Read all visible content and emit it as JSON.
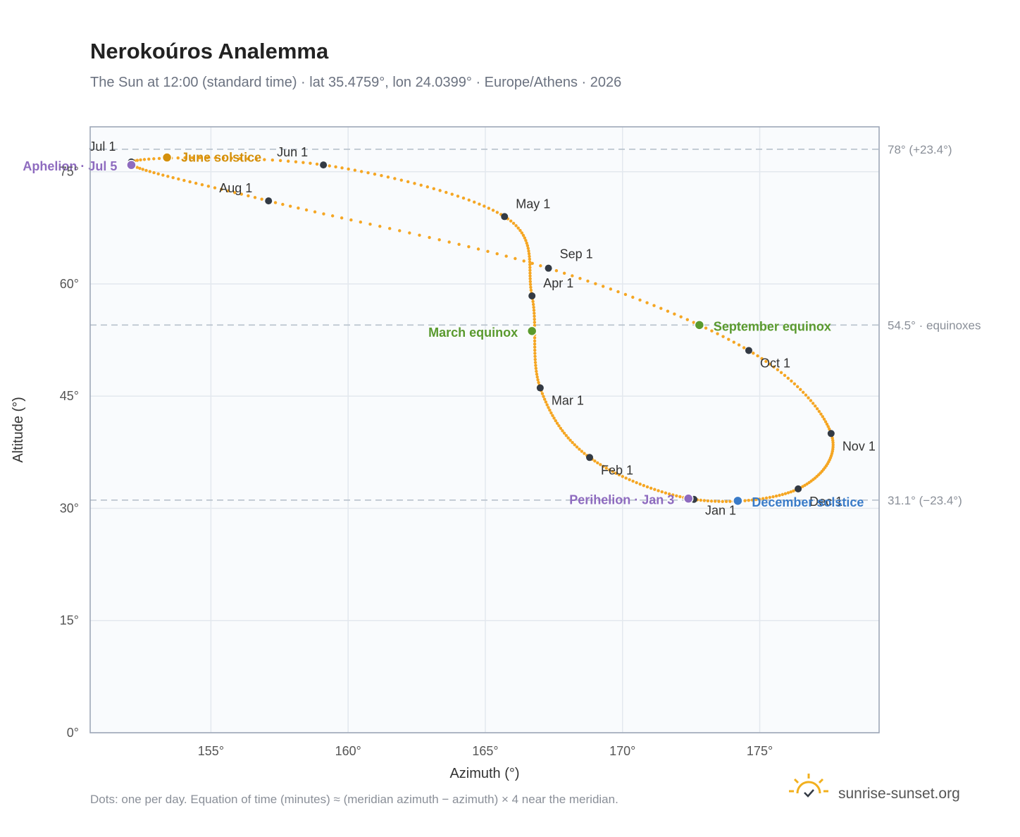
{
  "header": {
    "title": "Nerokoúros Analemma",
    "subtitle": "The Sun at 12:00 (standard time) · lat 35.4759°, lon 24.0399° · Europe/Athens · 2026"
  },
  "footer": {
    "note": "Dots: one per day. Equation of time (minutes) ≈ (meridian azimuth − azimuth) × 4 near the meridian.",
    "brand": "sunrise-sunset.org"
  },
  "colors": {
    "path": "#f5a623",
    "month_dot": "#333a44",
    "june_solstice": "#d4900c",
    "december_solstice": "#3a7bc8",
    "equinox": "#5a9a2e",
    "apsis": "#8e6bbf",
    "plot_bg": "#f9fbfd",
    "grid": "#e3e8ee",
    "frame": "#98a2b3",
    "ref_line": "#b7c1cc"
  },
  "chart_data": {
    "type": "scatter",
    "xlabel": "Azimuth (°)",
    "ylabel": "Altitude (°)",
    "xlim": [
      150.6,
      179.35
    ],
    "ylim": [
      0,
      81
    ],
    "x_ticks": [
      {
        "value": 155,
        "label": "155°"
      },
      {
        "value": 160,
        "label": "160°"
      },
      {
        "value": 165,
        "label": "165°"
      },
      {
        "value": 170,
        "label": "170°"
      },
      {
        "value": 175,
        "label": "175°"
      }
    ],
    "y_ticks": [
      {
        "value": 0,
        "label": "0°"
      },
      {
        "value": 15,
        "label": "15°"
      },
      {
        "value": 30,
        "label": "30°"
      },
      {
        "value": 45,
        "label": "45°"
      },
      {
        "value": 60,
        "label": "60°"
      },
      {
        "value": 75,
        "label": "75°"
      }
    ],
    "reference_lines": [
      {
        "y": 78.0,
        "label": "78° (+23.4°)"
      },
      {
        "y": 54.5,
        "label": "54.5° · equinoxes"
      },
      {
        "y": 31.1,
        "label": "31.1° (−23.4°)"
      }
    ],
    "month_markers": [
      {
        "label": "Jan 1",
        "azimuth": 172.6,
        "altitude": 31.2
      },
      {
        "label": "Feb 1",
        "azimuth": 168.8,
        "altitude": 36.8
      },
      {
        "label": "Mar 1",
        "azimuth": 167.0,
        "altitude": 46.1
      },
      {
        "label": "Apr 1",
        "azimuth": 166.7,
        "altitude": 58.4
      },
      {
        "label": "May 1",
        "azimuth": 165.7,
        "altitude": 69.0
      },
      {
        "label": "Jun 1",
        "azimuth": 159.1,
        "altitude": 75.9
      },
      {
        "label": "Jul 1",
        "azimuth": 152.1,
        "altitude": 76.3
      },
      {
        "label": "Aug 1",
        "azimuth": 157.1,
        "altitude": 71.1
      },
      {
        "label": "Sep 1",
        "azimuth": 167.3,
        "altitude": 62.1
      },
      {
        "label": "Oct 1",
        "azimuth": 174.6,
        "altitude": 51.1
      },
      {
        "label": "Nov 1",
        "azimuth": 177.6,
        "altitude": 40.0
      },
      {
        "label": "Dec 1",
        "azimuth": 176.4,
        "altitude": 32.6
      }
    ],
    "events": [
      {
        "label": "June solstice",
        "azimuth": 153.4,
        "altitude": 76.9,
        "color": "#d4900c"
      },
      {
        "label": "December solstice",
        "azimuth": 174.2,
        "altitude": 31.0,
        "color": "#3a7bc8"
      },
      {
        "label": "March equinox",
        "azimuth": 166.7,
        "altitude": 53.7,
        "color": "#5a9a2e"
      },
      {
        "label": "September equinox",
        "azimuth": 172.8,
        "altitude": 54.5,
        "color": "#5a9a2e"
      },
      {
        "label": "Aphelion · Jul 5",
        "azimuth": 152.1,
        "altitude": 75.9,
        "color": "#8e6bbf"
      },
      {
        "label": "Perihelion · Jan 3",
        "azimuth": 172.4,
        "altitude": 31.3,
        "color": "#8e6bbf"
      }
    ]
  }
}
